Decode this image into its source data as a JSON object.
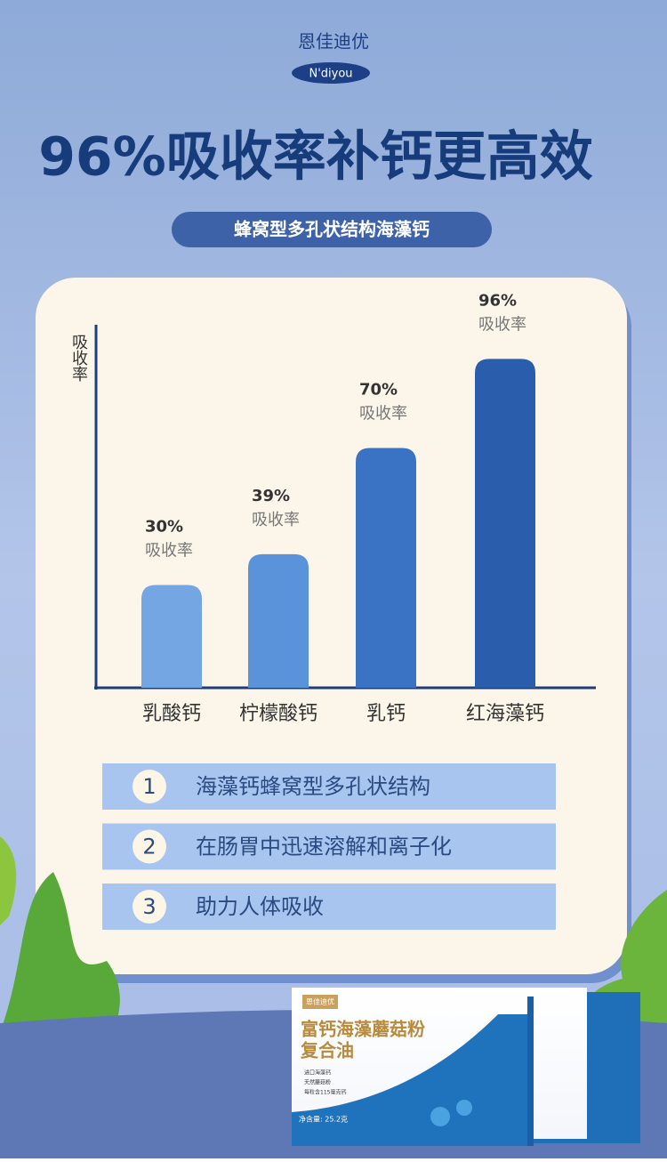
{
  "brand": {
    "name": "恩佳迪优",
    "latin": "N'diyou"
  },
  "headline": "96%吸收率补钙更高效",
  "subheadline": "蜂窝型多孔状结构海藻钙",
  "chart_data": {
    "type": "bar",
    "y_label": "吸收率",
    "value_caption": "吸收率",
    "categories": [
      "乳酸钙",
      "柠檬酸钙",
      "乳钙",
      "红海藻钙"
    ],
    "values": [
      30,
      39,
      70,
      96
    ],
    "value_labels": [
      "30%",
      "39%",
      "70%",
      "96%"
    ],
    "colors": [
      "#73a6e2",
      "#5b93da",
      "#3a72c4",
      "#2a5ead"
    ],
    "ylim": [
      0,
      100
    ]
  },
  "features": [
    {
      "number": "1",
      "text": "海藻钙蜂窝型多孔状结构"
    },
    {
      "number": "2",
      "text": "在肠胃中迅速溶解和离子化"
    },
    {
      "number": "3",
      "text": "助力人体吸收"
    }
  ],
  "product": {
    "brand": "恩佳迪优",
    "name_line1": "富钙海藻蘑菇粉",
    "name_line2": "复合油",
    "bullets": [
      "进口海藻钙",
      "天然蘑菇粉",
      "每粒含115毫克钙"
    ],
    "net": "净含量: 25.2克"
  }
}
